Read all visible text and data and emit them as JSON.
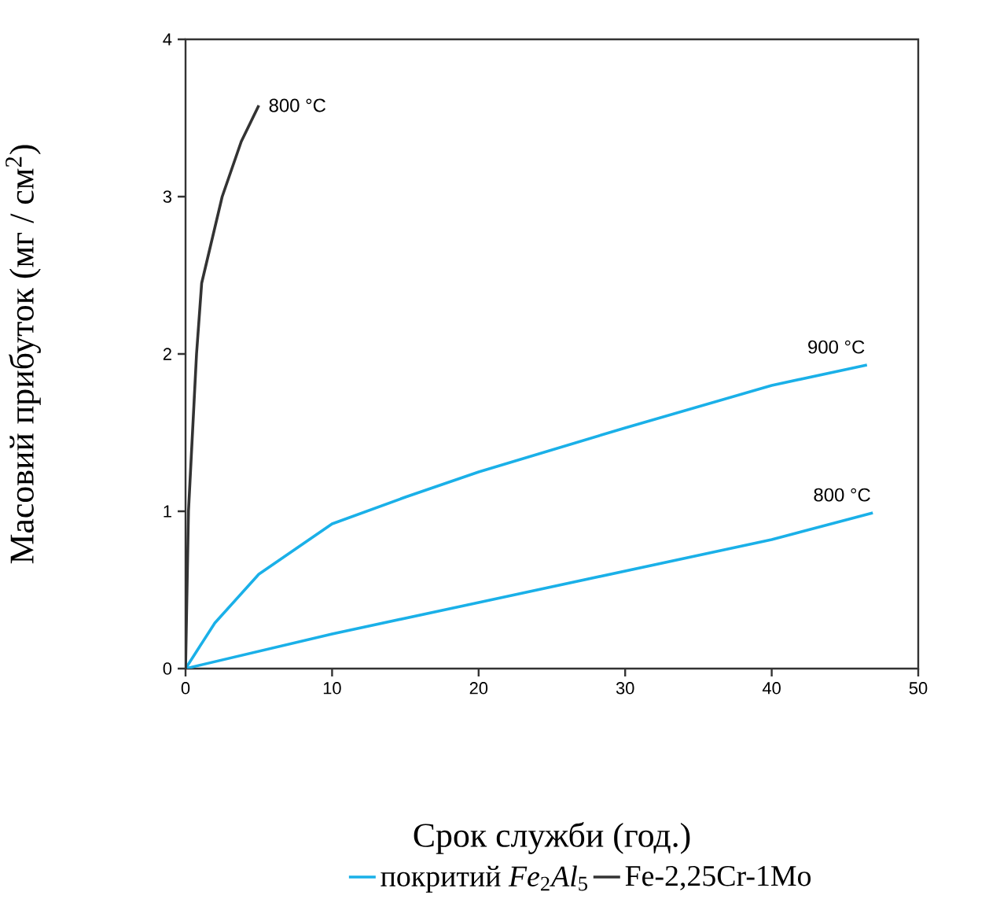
{
  "chart_data": {
    "type": "line",
    "xlabel": "Срок служби (год.)",
    "ylabel": "Масовий прибуток (мг / см$^{2}$)",
    "xlim": [
      0,
      50
    ],
    "ylim": [
      0,
      4
    ],
    "xticks": [
      0,
      10,
      20,
      30,
      40,
      50
    ],
    "yticks": [
      0,
      1,
      2,
      3,
      4
    ],
    "series": [
      {
        "name": "покритий *Fe*$_{2}$*Al*$_{5}$",
        "color": "#1ab0e8",
        "x": [
          0,
          2,
          5,
          10,
          15,
          20,
          30,
          40,
          46.5
        ],
        "values": [
          0,
          0.29,
          0.6,
          0.92,
          1.09,
          1.25,
          1.53,
          1.8,
          1.93
        ]
      },
      {
        "color": "#1ab0e8",
        "x": [
          0,
          10,
          20,
          30,
          40,
          46.9
        ],
        "values": [
          0,
          0.22,
          0.42,
          0.62,
          0.82,
          0.99
        ]
      },
      {
        "name": "Fe-2,25Cr-1Mo",
        "color": "#333333",
        "x": [
          0,
          0.2,
          0.75,
          1.1,
          2.5,
          3.8,
          5
        ],
        "values": [
          0,
          1,
          2,
          2.45,
          3,
          3.35,
          3.58
        ]
      }
    ],
    "annotations": [
      {
        "text": "800 °C",
        "x": 5,
        "y": 3.58
      },
      {
        "text": "900 °C",
        "x": 46.5,
        "y": 1.93
      },
      {
        "text": "800 °C",
        "x": 46.9,
        "y": 0.99
      }
    ],
    "legend": "bottom",
    "grid": false,
    "marker": "none",
    "line_style": "solid"
  }
}
